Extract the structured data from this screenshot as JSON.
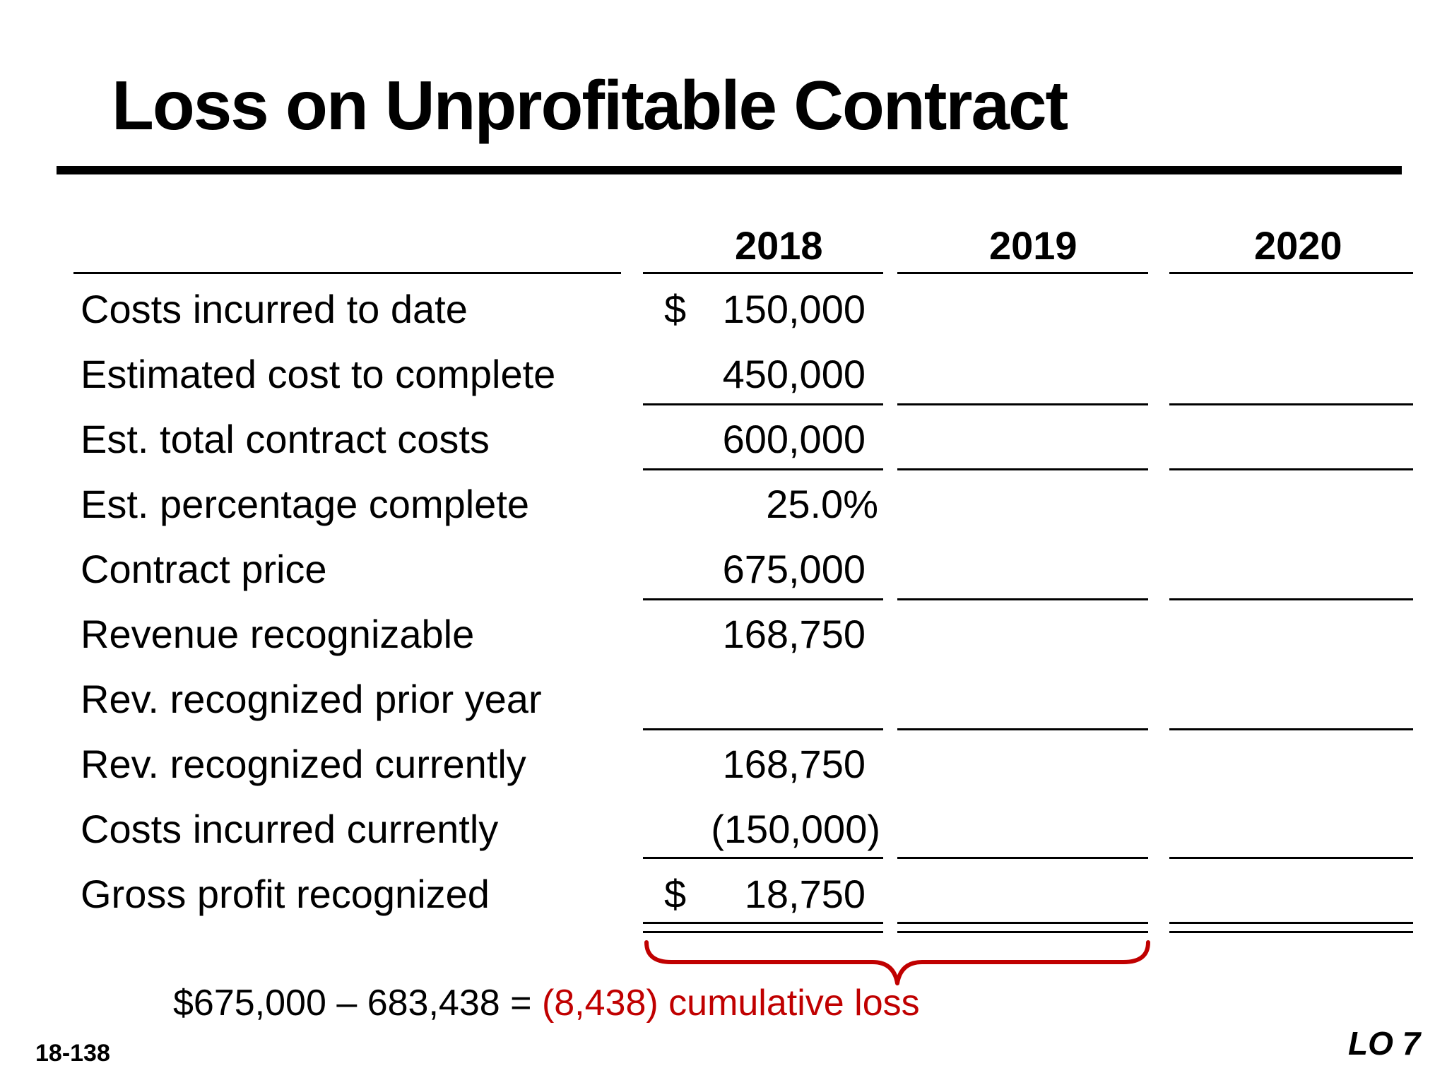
{
  "title": "Loss on Unprofitable Contract",
  "years": [
    "2018",
    "2019",
    "2020"
  ],
  "rows": [
    {
      "label": "Costs incurred to date",
      "v2018": "150,000",
      "dollar": "$"
    },
    {
      "label": "Estimated cost to complete",
      "v2018": "450,000"
    },
    {
      "label": "Est. total contract costs",
      "v2018": "600,000"
    },
    {
      "label": "Est. percentage complete",
      "v2018": "25.0%"
    },
    {
      "label": "Contract price",
      "v2018": "675,000"
    },
    {
      "label": "Revenue recognizable",
      "v2018": "168,750"
    },
    {
      "label": "Rev. recognized prior year",
      "v2018": ""
    },
    {
      "label": "Rev. recognized currently",
      "v2018": "168,750"
    },
    {
      "label": "Costs incurred currently",
      "v2018": "(150,000)"
    },
    {
      "label": "Gross profit recognized",
      "v2018": "18,750",
      "dollar": "$"
    }
  ],
  "formula": {
    "prefix": "$675,000 – 683,438 = ",
    "highlight": "(8,438) cumulative loss"
  },
  "footer": {
    "slide_number": "18-138",
    "learning_objective": "LO 7"
  },
  "colors": {
    "accent": "#c00000",
    "text": "#000000"
  }
}
